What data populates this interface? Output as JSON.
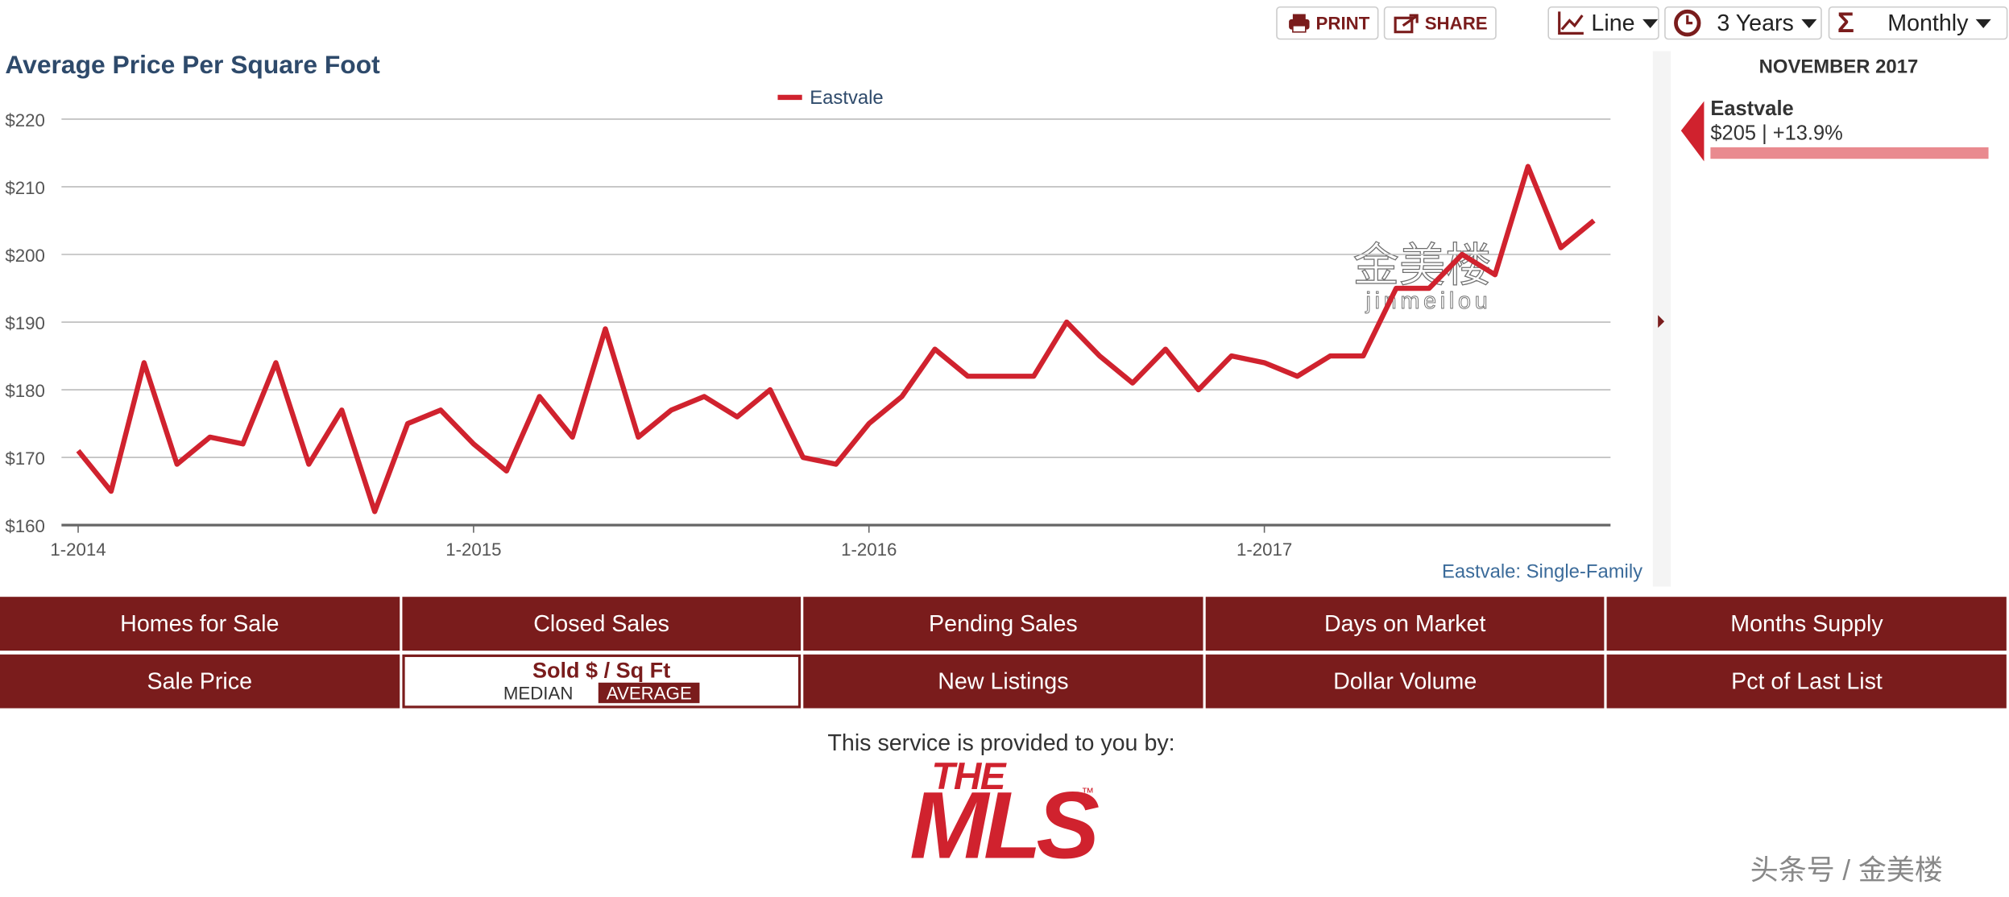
{
  "toolbar": {
    "print": "PRINT",
    "share": "SHARE",
    "chart_type": "Line",
    "range": "3 Years",
    "interval": "Monthly"
  },
  "chart_data": {
    "type": "line",
    "title": "Average Price Per Square Foot",
    "caption": "Eastvale: Single-Family",
    "categories": [
      "1-2014",
      null,
      null,
      null,
      null,
      null,
      null,
      null,
      null,
      null,
      null,
      null,
      "1-2015",
      null,
      null,
      null,
      null,
      null,
      null,
      null,
      null,
      null,
      null,
      null,
      "1-2016",
      null,
      null,
      null,
      null,
      null,
      null,
      null,
      null,
      null,
      null,
      null,
      "1-2017",
      null,
      null,
      null,
      null,
      null,
      null,
      null,
      null,
      null,
      null
    ],
    "series": [
      {
        "name": "Eastvale",
        "color": "#d0222e",
        "values": [
          171,
          165,
          184,
          169,
          173,
          172,
          184,
          169,
          177,
          162,
          175,
          177,
          172,
          168,
          179,
          173,
          189,
          173,
          177,
          179,
          176,
          180,
          170,
          169,
          175,
          179,
          186,
          182,
          182,
          182,
          190,
          185,
          181,
          186,
          180,
          185,
          184,
          182,
          185,
          185,
          195,
          195,
          200,
          197,
          213,
          201,
          205
        ]
      }
    ],
    "ylim": [
      160,
      220
    ],
    "yticks": [
      {
        "value": 160,
        "label": "$160"
      },
      {
        "value": 170,
        "label": "$170"
      },
      {
        "value": 180,
        "label": "$180"
      },
      {
        "value": 190,
        "label": "$190"
      },
      {
        "value": 200,
        "label": "$200"
      },
      {
        "value": 210,
        "label": "$210"
      },
      {
        "value": 220,
        "label": "$220"
      }
    ],
    "grid": true,
    "legend": "top"
  },
  "chart_watermark": {
    "cn": "金美楼",
    "en": "jinmeilou"
  },
  "side_panel": {
    "period": "NOVEMBER 2017",
    "name": "Eastvale",
    "summary": "$205 | +13.9%"
  },
  "tabs": {
    "rows": [
      [
        "Homes for Sale",
        "Closed Sales",
        "Pending Sales",
        "Days on Market",
        "Months Supply"
      ],
      [
        "Sale Price",
        "Sold $ / Sq Ft",
        "New Listings",
        "Dollar Volume",
        "Pct of Last List"
      ]
    ],
    "options": [
      "MEDIAN",
      "AVERAGE"
    ]
  },
  "footer": {
    "provided": "This service is provided to you by:",
    "logo_top": "THE",
    "logo_main": "MLS",
    "logo_tm": "™",
    "watermark": "头条号 / 金美楼"
  }
}
